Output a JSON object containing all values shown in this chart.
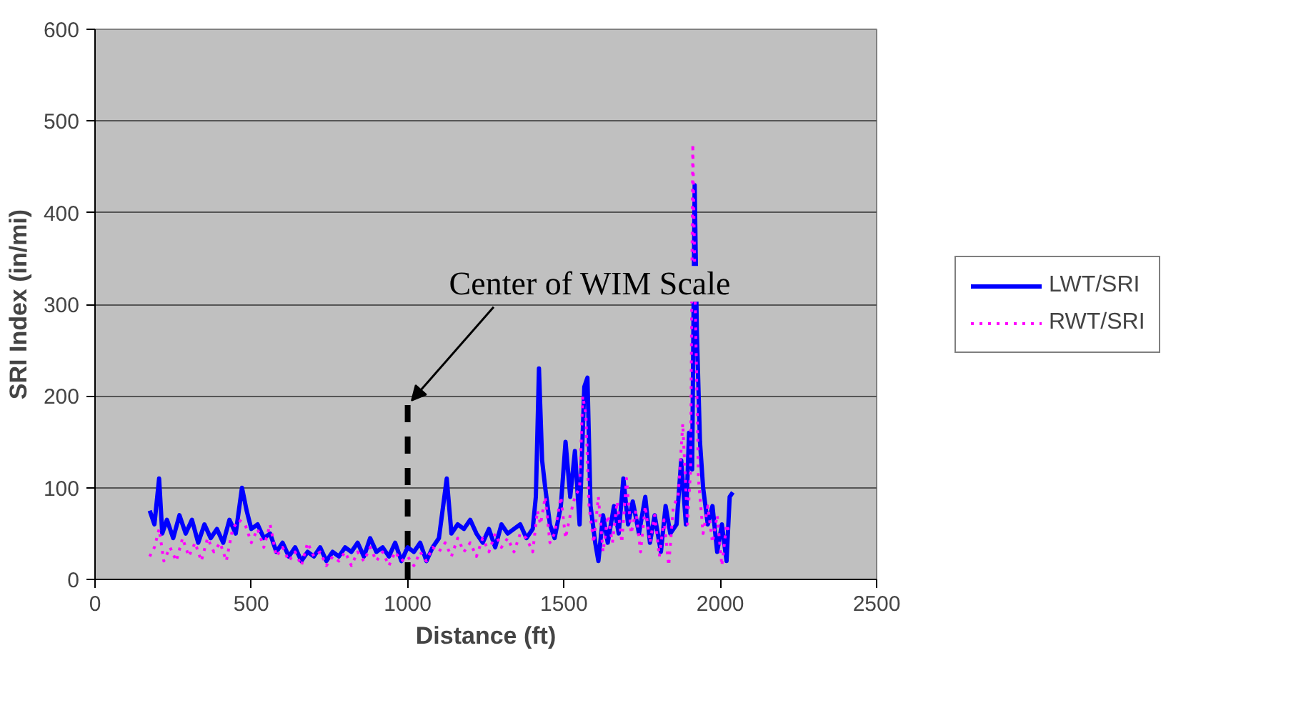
{
  "chart_data": {
    "type": "line",
    "xlabel": "Distance (ft)",
    "ylabel": "SRI Index (in/mi)",
    "xlim": [
      0,
      2500
    ],
    "xticks": [
      0,
      500,
      1000,
      1500,
      2000,
      2500
    ],
    "ylim": [
      0,
      600
    ],
    "yticks": [
      0,
      100,
      200,
      300,
      400,
      500,
      600
    ],
    "grid": "y",
    "legend": "right",
    "marker": "none",
    "annotations": [
      {
        "text": "Center of WIM Scale",
        "x": 1000,
        "y": 195
      }
    ],
    "series": [
      {
        "type": "line",
        "color": "#000000",
        "line_style": "dashed",
        "x": [
          1000,
          1000
        ],
        "values": [
          0,
          195
        ]
      },
      {
        "name": "LWT/SRI",
        "color": "#0000ff",
        "line_style": "solid",
        "x": [
          175,
          190,
          205,
          215,
          230,
          250,
          270,
          290,
          310,
          330,
          350,
          370,
          390,
          410,
          430,
          450,
          470,
          485,
          500,
          520,
          540,
          560,
          580,
          600,
          620,
          640,
          660,
          680,
          700,
          720,
          740,
          760,
          780,
          800,
          820,
          840,
          860,
          880,
          900,
          920,
          940,
          960,
          980,
          1000,
          1020,
          1040,
          1060,
          1080,
          1100,
          1125,
          1140,
          1160,
          1180,
          1200,
          1220,
          1240,
          1260,
          1280,
          1300,
          1320,
          1340,
          1360,
          1380,
          1400,
          1410,
          1420,
          1430,
          1440,
          1455,
          1470,
          1490,
          1505,
          1520,
          1535,
          1550,
          1565,
          1575,
          1585,
          1600,
          1610,
          1625,
          1640,
          1660,
          1675,
          1690,
          1705,
          1720,
          1740,
          1760,
          1775,
          1790,
          1810,
          1825,
          1840,
          1860,
          1875,
          1890,
          1900,
          1910,
          1918,
          1925,
          1935,
          1945,
          1960,
          1975,
          1990,
          2005,
          2020,
          2030,
          2040
        ],
        "values": [
          75,
          60,
          110,
          50,
          65,
          45,
          70,
          50,
          65,
          40,
          60,
          45,
          55,
          40,
          65,
          50,
          100,
          75,
          55,
          60,
          45,
          50,
          30,
          40,
          25,
          35,
          20,
          30,
          25,
          35,
          20,
          30,
          25,
          35,
          30,
          40,
          25,
          45,
          30,
          35,
          25,
          40,
          20,
          35,
          30,
          40,
          20,
          35,
          45,
          110,
          50,
          60,
          55,
          65,
          50,
          40,
          55,
          35,
          60,
          50,
          55,
          60,
          45,
          55,
          90,
          230,
          130,
          100,
          60,
          45,
          80,
          150,
          90,
          140,
          60,
          210,
          220,
          80,
          40,
          20,
          70,
          40,
          80,
          50,
          110,
          60,
          85,
          50,
          90,
          40,
          70,
          30,
          80,
          50,
          60,
          130,
          60,
          160,
          120,
          430,
          270,
          150,
          100,
          60,
          80,
          30,
          60,
          20,
          90,
          95
        ]
      },
      {
        "name": "RWT/SRI",
        "color": "#ff00ff",
        "line_style": "dotted",
        "x": [
          175,
          190,
          205,
          220,
          240,
          260,
          280,
          300,
          320,
          340,
          360,
          380,
          400,
          420,
          440,
          460,
          480,
          500,
          520,
          540,
          560,
          580,
          600,
          620,
          640,
          660,
          680,
          700,
          720,
          740,
          760,
          780,
          800,
          820,
          840,
          860,
          880,
          900,
          920,
          940,
          960,
          980,
          1000,
          1020,
          1040,
          1060,
          1080,
          1100,
          1120,
          1140,
          1160,
          1180,
          1200,
          1220,
          1240,
          1260,
          1280,
          1300,
          1320,
          1340,
          1360,
          1380,
          1400,
          1415,
          1425,
          1440,
          1455,
          1470,
          1490,
          1505,
          1520,
          1535,
          1550,
          1560,
          1570,
          1580,
          1595,
          1610,
          1625,
          1640,
          1655,
          1670,
          1685,
          1700,
          1715,
          1730,
          1745,
          1760,
          1775,
          1790,
          1805,
          1820,
          1835,
          1850,
          1865,
          1880,
          1895,
          1905,
          1912,
          1920,
          1930,
          1945,
          1960,
          1975,
          1990,
          2005,
          2020,
          2030
        ],
        "values": [
          25,
          35,
          55,
          20,
          35,
          20,
          45,
          25,
          40,
          20,
          45,
          30,
          40,
          20,
          55,
          65,
          60,
          40,
          55,
          35,
          60,
          25,
          35,
          20,
          30,
          15,
          40,
          25,
          30,
          15,
          25,
          20,
          30,
          15,
          30,
          20,
          35,
          20,
          30,
          15,
          30,
          20,
          25,
          15,
          30,
          20,
          35,
          30,
          40,
          25,
          45,
          30,
          40,
          25,
          45,
          30,
          50,
          35,
          45,
          30,
          50,
          45,
          30,
          75,
          60,
          90,
          40,
          50,
          90,
          45,
          70,
          90,
          100,
          200,
          180,
          80,
          40,
          90,
          30,
          70,
          40,
          85,
          40,
          110,
          50,
          75,
          30,
          80,
          40,
          70,
          25,
          65,
          15,
          80,
          90,
          170,
          60,
          120,
          475,
          300,
          110,
          50,
          80,
          40,
          70,
          15,
          60,
          50
        ]
      }
    ]
  }
}
